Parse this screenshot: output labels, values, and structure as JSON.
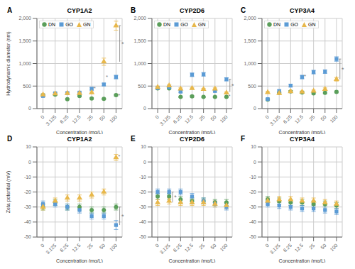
{
  "chart_data": [
    {
      "type": "scatter",
      "title": "CYP1A2",
      "panel_label": "A",
      "x_label": "Concentration (mg/L)",
      "y_label": "Hydrodynamic diameter (nm)",
      "categories": [
        "0",
        "3.125",
        "6.25",
        "12.5",
        "25",
        "50",
        "100"
      ],
      "ylim": [
        0,
        2000
      ],
      "yticks": [
        0,
        500,
        {
          "value": 1000,
          "label": "1,000"
        },
        {
          "value": 1500,
          "label": "1,500"
        },
        {
          "value": 2000,
          "label": "2,000"
        }
      ],
      "grid": true,
      "legend": "upper left",
      "series": [
        {
          "name": "DN",
          "color": "#5a9e5a",
          "marker": "circle",
          "values": [
            300,
            310,
            210,
            280,
            225,
            215,
            300
          ],
          "errors": [
            20,
            15,
            15,
            20,
            15,
            15,
            20
          ]
        },
        {
          "name": "GO",
          "color": "#5b9bd5",
          "marker": "square",
          "values": [
            280,
            340,
            345,
            355,
            440,
            535,
            700
          ],
          "errors": [
            20,
            20,
            20,
            20,
            30,
            30,
            40
          ]
        },
        {
          "name": "GN",
          "color": "#e8b84b",
          "marker": "triangle",
          "values": [
            310,
            330,
            340,
            340,
            355,
            1040,
            1840
          ],
          "errors": [
            20,
            20,
            20,
            20,
            20,
            80,
            100
          ]
        }
      ],
      "annotations": [
        {
          "text": "*",
          "category": "25",
          "y": 460
        },
        {
          "text": "*",
          "category": "50",
          "y": 700
        },
        {
          "text": "*",
          "category": "100",
          "y": 290
        }
      ],
      "brackets": [
        {
          "text": "*",
          "category": "100",
          "from": 1040,
          "to": 1840
        }
      ]
    },
    {
      "type": "scatter",
      "title": "CYP2D6",
      "panel_label": "B",
      "x_label": "Concentration (mg/L)",
      "categories": [
        "0",
        "3.125",
        "6.25",
        "12.5",
        "25",
        "50",
        "100"
      ],
      "ylim": [
        0,
        2000
      ],
      "yticks": [
        0,
        500,
        {
          "value": 1000,
          "label": "1,000"
        },
        {
          "value": 1500,
          "label": "1,500"
        },
        {
          "value": 2000,
          "label": "2,000"
        }
      ],
      "grid": true,
      "legend": "upper left",
      "series": [
        {
          "name": "DN",
          "color": "#5a9e5a",
          "marker": "circle",
          "values": [
            450,
            450,
            260,
            270,
            260,
            260,
            260
          ],
          "errors": [
            20,
            20,
            15,
            15,
            15,
            15,
            15
          ]
        },
        {
          "name": "GO",
          "color": "#5b9bd5",
          "marker": "square",
          "values": [
            455,
            475,
            375,
            750,
            760,
            390,
            650
          ],
          "errors": [
            25,
            25,
            20,
            40,
            40,
            20,
            35
          ]
        },
        {
          "name": "GN",
          "color": "#e8b84b",
          "marker": "triangle",
          "values": [
            475,
            510,
            440,
            450,
            430,
            440,
            350
          ],
          "errors": [
            25,
            25,
            20,
            20,
            20,
            20,
            20
          ]
        }
      ],
      "annotations": [
        {
          "text": "*",
          "category": "100",
          "y": 275
        }
      ],
      "brackets": [
        {
          "text": "*",
          "category": "100",
          "from": 370,
          "to": 650
        }
      ]
    },
    {
      "type": "scatter",
      "title": "CYP3A4",
      "panel_label": "C",
      "x_label": "Concentration (mg/L)",
      "categories": [
        "0",
        "3.125",
        "6.25",
        "12.5",
        "25",
        "50",
        "100"
      ],
      "ylim": [
        0,
        2000
      ],
      "yticks": [
        0,
        500,
        {
          "value": 1000,
          "label": "1,000"
        },
        {
          "value": 1500,
          "label": "1,500"
        },
        {
          "value": 2000,
          "label": "2,000"
        }
      ],
      "grid": true,
      "legend": "upper left",
      "series": [
        {
          "name": "DN",
          "color": "#5a9e5a",
          "marker": "circle",
          "values": [
            200,
            350,
            380,
            360,
            340,
            350,
            370
          ],
          "errors": [
            15,
            20,
            20,
            20,
            20,
            20,
            20
          ]
        },
        {
          "name": "GO",
          "color": "#5b9bd5",
          "marker": "square",
          "values": [
            210,
            390,
            510,
            700,
            810,
            820,
            1100
          ],
          "errors": [
            15,
            25,
            30,
            40,
            40,
            40,
            50
          ]
        },
        {
          "name": "GN",
          "color": "#e8b84b",
          "marker": "triangle",
          "values": [
            360,
            340,
            380,
            370,
            390,
            430,
            650
          ],
          "errors": [
            20,
            20,
            20,
            20,
            20,
            30,
            40
          ]
        }
      ],
      "annotations": [
        {
          "text": "*",
          "category": "12.5",
          "y": 720
        }
      ],
      "brackets": [
        {
          "text": "*",
          "category": "100",
          "from": 650,
          "to": 1100
        }
      ]
    },
    {
      "type": "scatter",
      "title": "CYP1A2",
      "panel_label": "D",
      "x_label": "Concentration (mg/L)",
      "y_label": "Zeta potential (mV)",
      "categories": [
        "0",
        "3.125",
        "6.25",
        "12.5",
        "25",
        "50",
        "100"
      ],
      "ylim": [
        -50,
        10
      ],
      "yticks": [
        -50,
        -40,
        -30,
        -20,
        -10,
        0,
        10
      ],
      "grid": true,
      "series": [
        {
          "name": "DN",
          "color": "#5a9e5a",
          "marker": "circle",
          "values": [
            -30,
            -27,
            -30,
            -30,
            -32,
            -32,
            -30
          ],
          "errors": [
            2,
            2,
            2,
            2,
            2,
            2,
            2
          ]
        },
        {
          "name": "GO",
          "color": "#5b9bd5",
          "marker": "square",
          "values": [
            -28,
            -28,
            -30,
            -32,
            -36,
            -36,
            -42
          ],
          "errors": [
            2,
            2,
            2,
            2,
            2,
            2,
            3
          ]
        },
        {
          "name": "GN",
          "color": "#e8b84b",
          "marker": "triangle",
          "values": [
            -30,
            -26,
            -24,
            -24,
            -22,
            -20,
            3
          ],
          "errors": [
            2,
            2,
            2,
            2,
            2,
            2,
            2
          ]
        }
      ],
      "annotations": [
        {
          "text": "*",
          "category": "100",
          "y": 4
        }
      ],
      "brackets": [
        {
          "text": "*",
          "category": "100",
          "from": -42,
          "to": -30
        }
      ]
    },
    {
      "type": "scatter",
      "title": "CYP2D6",
      "panel_label": "E",
      "x_label": "Concentration (mg/L)",
      "categories": [
        "0",
        "3.125",
        "6.25",
        "12.5",
        "25",
        "50",
        "100"
      ],
      "ylim": [
        -50,
        10
      ],
      "yticks": [
        -50,
        -40,
        -30,
        -20,
        -10,
        0,
        10
      ],
      "grid": true,
      "series": [
        {
          "name": "DN",
          "color": "#5a9e5a",
          "marker": "circle",
          "values": [
            -23,
            -23,
            -25,
            -26,
            -26,
            -27,
            -27
          ],
          "errors": [
            2,
            2,
            2,
            2,
            2,
            2,
            2
          ]
        },
        {
          "name": "GO",
          "color": "#5b9bd5",
          "marker": "square",
          "values": [
            -20,
            -20,
            -20,
            -23,
            -26,
            -28,
            -30
          ],
          "errors": [
            2,
            2,
            2,
            2,
            2,
            2,
            2
          ]
        },
        {
          "name": "GN",
          "color": "#e8b84b",
          "marker": "triangle",
          "values": [
            -27,
            -26,
            -27,
            -27,
            -27,
            -28,
            -29
          ],
          "errors": [
            2,
            2,
            2,
            2,
            2,
            2,
            2
          ]
        }
      ],
      "brackets": [
        {
          "text": "*",
          "category": "3.125",
          "from": -27,
          "to": -20
        }
      ]
    },
    {
      "type": "scatter",
      "title": "CYP3A4",
      "panel_label": "F",
      "x_label": "Concentration (mg/L)",
      "categories": [
        "0",
        "3.125",
        "6.25",
        "12.5",
        "25",
        "50",
        "100"
      ],
      "ylim": [
        -50,
        10
      ],
      "yticks": [
        -50,
        -40,
        -30,
        -20,
        -10,
        0,
        10
      ],
      "grid": true,
      "series": [
        {
          "name": "DN",
          "color": "#5a9e5a",
          "marker": "circle",
          "values": [
            -25,
            -26,
            -27,
            -27,
            -28,
            -28,
            -29
          ],
          "errors": [
            2,
            2,
            2,
            2,
            2,
            2,
            2
          ]
        },
        {
          "name": "GO",
          "color": "#5b9bd5",
          "marker": "square",
          "values": [
            -28,
            -29,
            -30,
            -31,
            -31,
            -32,
            -33
          ],
          "errors": [
            2,
            2,
            2,
            2,
            2,
            2,
            2
          ]
        },
        {
          "name": "GN",
          "color": "#e8b84b",
          "marker": "triangle",
          "values": [
            -26,
            -25,
            -25,
            -26,
            -26,
            -27,
            -28
          ],
          "errors": [
            2,
            2,
            2,
            2,
            2,
            2,
            2
          ]
        }
      ]
    }
  ]
}
